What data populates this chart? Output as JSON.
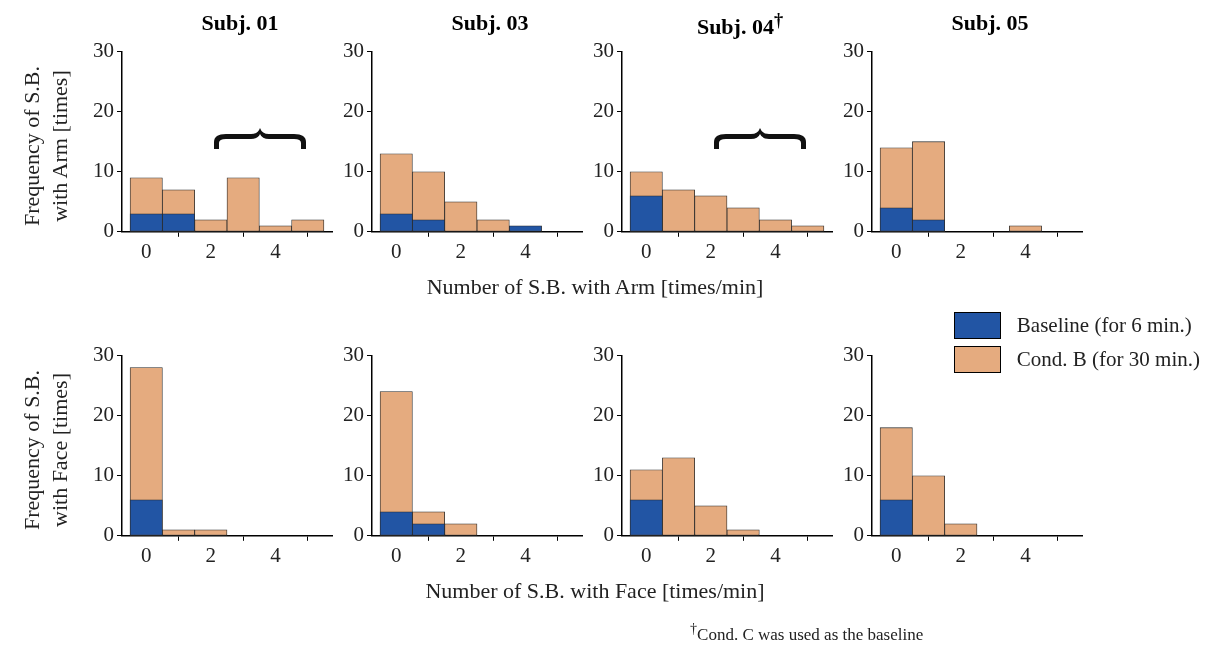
{
  "chart_data": [
    {
      "type": "histogram",
      "title": "Subj. 01",
      "ylabel": "Frequency of S.B.\nwith Arm [times]",
      "bins": [
        -0.5,
        0.5,
        1.5,
        2.5,
        3.5,
        4.5,
        5.5
      ],
      "xlim": [
        -0.75,
        5.75
      ],
      "xticks": [
        0,
        2,
        4
      ],
      "ylim": [
        0,
        30
      ],
      "yticks": [
        0,
        10,
        20,
        30
      ],
      "series": [
        {
          "color": "#2255a4",
          "values": [
            3,
            3,
            0,
            0,
            0,
            0
          ]
        },
        {
          "color": "#e5ab7f",
          "values": [
            9,
            7,
            2,
            9,
            1,
            2
          ]
        }
      ]
    },
    {
      "type": "histogram",
      "title": "Subj. 03",
      "xlabel": "Number of S.B. with Arm [times/min]",
      "bins": [
        -0.5,
        0.5,
        1.5,
        2.5,
        3.5,
        4.5,
        5.5
      ],
      "xlim": [
        -0.75,
        5.75
      ],
      "xticks": [
        0,
        2,
        4
      ],
      "ylim": [
        0,
        30
      ],
      "yticks": [
        0,
        10,
        20,
        30
      ],
      "series": [
        {
          "color": "#2255a4",
          "values": [
            3,
            2,
            0,
            0,
            1,
            0
          ]
        },
        {
          "color": "#e5ab7f",
          "values": [
            13,
            10,
            5,
            2,
            0,
            0
          ]
        }
      ]
    },
    {
      "type": "histogram",
      "title": "Subj. 04$^{†}$",
      "bins": [
        -0.5,
        0.5,
        1.5,
        2.5,
        3.5,
        4.5,
        5.5
      ],
      "xlim": [
        -0.75,
        5.75
      ],
      "xticks": [
        0,
        2,
        4
      ],
      "ylim": [
        0,
        30
      ],
      "yticks": [
        0,
        10,
        20,
        30
      ],
      "series": [
        {
          "color": "#2255a4",
          "values": [
            6,
            0,
            0,
            0,
            0,
            0
          ]
        },
        {
          "color": "#e5ab7f",
          "values": [
            10,
            7,
            6,
            4,
            2,
            1
          ]
        }
      ]
    },
    {
      "type": "histogram",
      "title": "Subj. 05",
      "bins": [
        -0.5,
        0.5,
        1.5,
        2.5,
        3.5,
        4.5,
        5.5
      ],
      "xlim": [
        -0.75,
        5.75
      ],
      "xticks": [
        0,
        2,
        4
      ],
      "ylim": [
        0,
        30
      ],
      "yticks": [
        0,
        10,
        20,
        30
      ],
      "series": [
        {
          "color": "#2255a4",
          "values": [
            4,
            2,
            0,
            0,
            0,
            0
          ]
        },
        {
          "color": "#e5ab7f",
          "values": [
            14,
            15,
            0,
            0,
            1,
            0
          ]
        }
      ]
    },
    {
      "type": "histogram",
      "ylabel": "Frequency of S.B.\nwith Face [times]",
      "bins": [
        -0.5,
        0.5,
        1.5,
        2.5,
        3.5,
        4.5,
        5.5
      ],
      "xlim": [
        -0.75,
        5.75
      ],
      "xticks": [
        0,
        2,
        4
      ],
      "ylim": [
        0,
        30
      ],
      "yticks": [
        0,
        10,
        20,
        30
      ],
      "series": [
        {
          "color": "#2255a4",
          "values": [
            6,
            0,
            0,
            0,
            0,
            0
          ]
        },
        {
          "color": "#e5ab7f",
          "values": [
            28,
            1,
            1,
            0,
            0,
            0
          ]
        }
      ]
    },
    {
      "type": "histogram",
      "xlabel": "Number of S.B. with Face [times/min]",
      "bins": [
        -0.5,
        0.5,
        1.5,
        2.5,
        3.5,
        4.5,
        5.5
      ],
      "xlim": [
        -0.75,
        5.75
      ],
      "xticks": [
        0,
        2,
        4
      ],
      "ylim": [
        0,
        30
      ],
      "yticks": [
        0,
        10,
        20,
        30
      ],
      "series": [
        {
          "color": "#2255a4",
          "values": [
            4,
            2,
            0,
            0,
            0,
            0
          ]
        },
        {
          "color": "#e5ab7f",
          "values": [
            24,
            4,
            2,
            0,
            0,
            0
          ]
        }
      ]
    },
    {
      "type": "histogram",
      "bins": [
        -0.5,
        0.5,
        1.5,
        2.5,
        3.5,
        4.5,
        5.5
      ],
      "xlim": [
        -0.75,
        5.75
      ],
      "xticks": [
        0,
        2,
        4
      ],
      "ylim": [
        0,
        30
      ],
      "yticks": [
        0,
        10,
        20,
        30
      ],
      "series": [
        {
          "color": "#2255a4",
          "values": [
            6,
            0,
            0,
            0,
            0,
            0
          ]
        },
        {
          "color": "#e5ab7f",
          "values": [
            11,
            13,
            5,
            1,
            0,
            0
          ]
        }
      ]
    },
    {
      "type": "histogram",
      "legend": "top right",
      "annotations": [
        "$^{†}$Cond. C was used as the baseline"
      ],
      "bins": [
        -0.5,
        0.5,
        1.5,
        2.5,
        3.5,
        4.5,
        5.5
      ],
      "xlim": [
        -0.75,
        5.75
      ],
      "xticks": [
        0,
        2,
        4
      ],
      "ylim": [
        0,
        30
      ],
      "yticks": [
        0,
        10,
        20,
        30
      ],
      "series": [
        {
          "name": "Baseline (for 6 min.)",
          "color": "#2255a4",
          "values": [
            6,
            0,
            0,
            0,
            0,
            0
          ]
        },
        {
          "name": "Cond. B (for 30 min.)",
          "color": "#e5ab7f",
          "values": [
            18,
            10,
            2,
            0,
            0,
            0
          ]
        }
      ]
    }
  ]
}
